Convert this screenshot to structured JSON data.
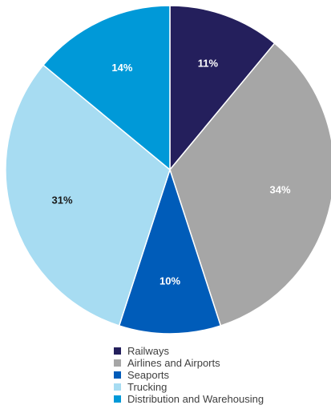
{
  "chart_data": {
    "type": "pie",
    "title": "",
    "slices": [
      {
        "label": "Railways",
        "value": 11,
        "value_label": "11%",
        "color": "#241f5c",
        "label_color": "#ffffff"
      },
      {
        "label": "Airlines and Airports",
        "value": 34,
        "value_label": "34%",
        "color": "#a6a6a6",
        "label_color": "#ffffff"
      },
      {
        "label": "Seaports",
        "value": 10,
        "value_label": "10%",
        "color": "#005cb9",
        "label_color": "#ffffff"
      },
      {
        "label": "Trucking",
        "value": 31,
        "value_label": "31%",
        "color": "#a7dcf2",
        "label_color": "#1a1a1a"
      },
      {
        "label": "Distribution and Warehousing",
        "value": 14,
        "value_label": "14%",
        "color": "#0099d8",
        "label_color": "#ffffff"
      }
    ],
    "start": "top",
    "direction": "clockwise",
    "legend_position": "bottom"
  }
}
